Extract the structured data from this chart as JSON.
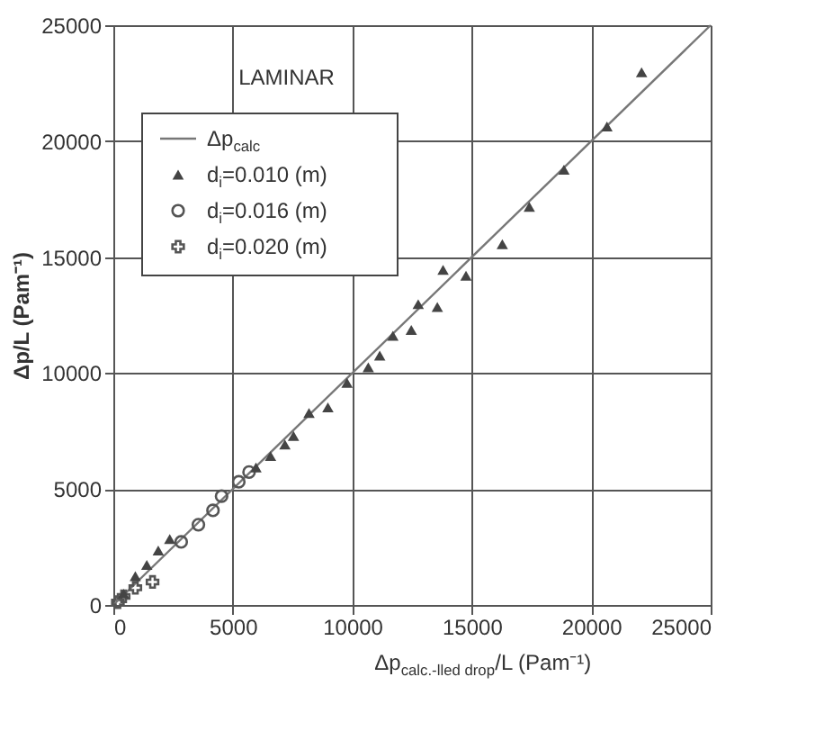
{
  "chart_data": {
    "type": "scatter",
    "xlabel": "Δp$_{calc.-lled drop}$/L (Pam⁻¹)",
    "ylabel": "Δp/L (Pam⁻¹)",
    "annotations": [
      "LAMINAR"
    ],
    "xlim": [
      0,
      25000
    ],
    "ylim": [
      0,
      25000
    ],
    "xticks": [
      0,
      5000,
      10000,
      15000,
      20000,
      25000
    ],
    "yticks": [
      0,
      5000,
      10000,
      15000,
      20000,
      25000
    ],
    "grid": true,
    "legend": "top left",
    "series": [
      {
        "name": "Δp$_{calc}$",
        "type": "line",
        "color": "#777777",
        "marker": "none",
        "line_style": "solid",
        "x": [
          0,
          25000
        ],
        "values": [
          0,
          25000
        ]
      },
      {
        "name": "d$_{i}$=0.010 (m)",
        "color": "#444444",
        "marker": "triangle",
        "x": [
          22110,
          20660,
          18860,
          17410,
          16280,
          13800,
          14760,
          12760,
          13560,
          12470,
          11700,
          11150,
          10670,
          9780,
          8980,
          8190,
          7540,
          7180,
          6580,
          5970,
          2360,
          1880,
          1400,
          920,
          430
        ],
        "values": [
          22970,
          20630,
          18770,
          17170,
          15560,
          14450,
          14200,
          12970,
          12850,
          11860,
          11610,
          10750,
          10250,
          9580,
          8520,
          8280,
          7290,
          6920,
          6420,
          5930,
          2840,
          2350,
          1730,
          1240,
          490
        ]
      },
      {
        "name": "d$_{i}$=0.016 (m)",
        "color": "#555555",
        "marker": "circle",
        "x": [
          5680,
          5250,
          4530,
          4170,
          3560,
          2840
        ],
        "values": [
          5730,
          5310,
          4690,
          4080,
          3460,
          2720
        ]
      },
      {
        "name": "d$_{i}$=0.020 (m)",
        "color": "#555555",
        "marker": "cross",
        "x": [
          190,
          430,
          920,
          1640
        ],
        "values": [
          120,
          370,
          740,
          990
        ]
      }
    ]
  }
}
